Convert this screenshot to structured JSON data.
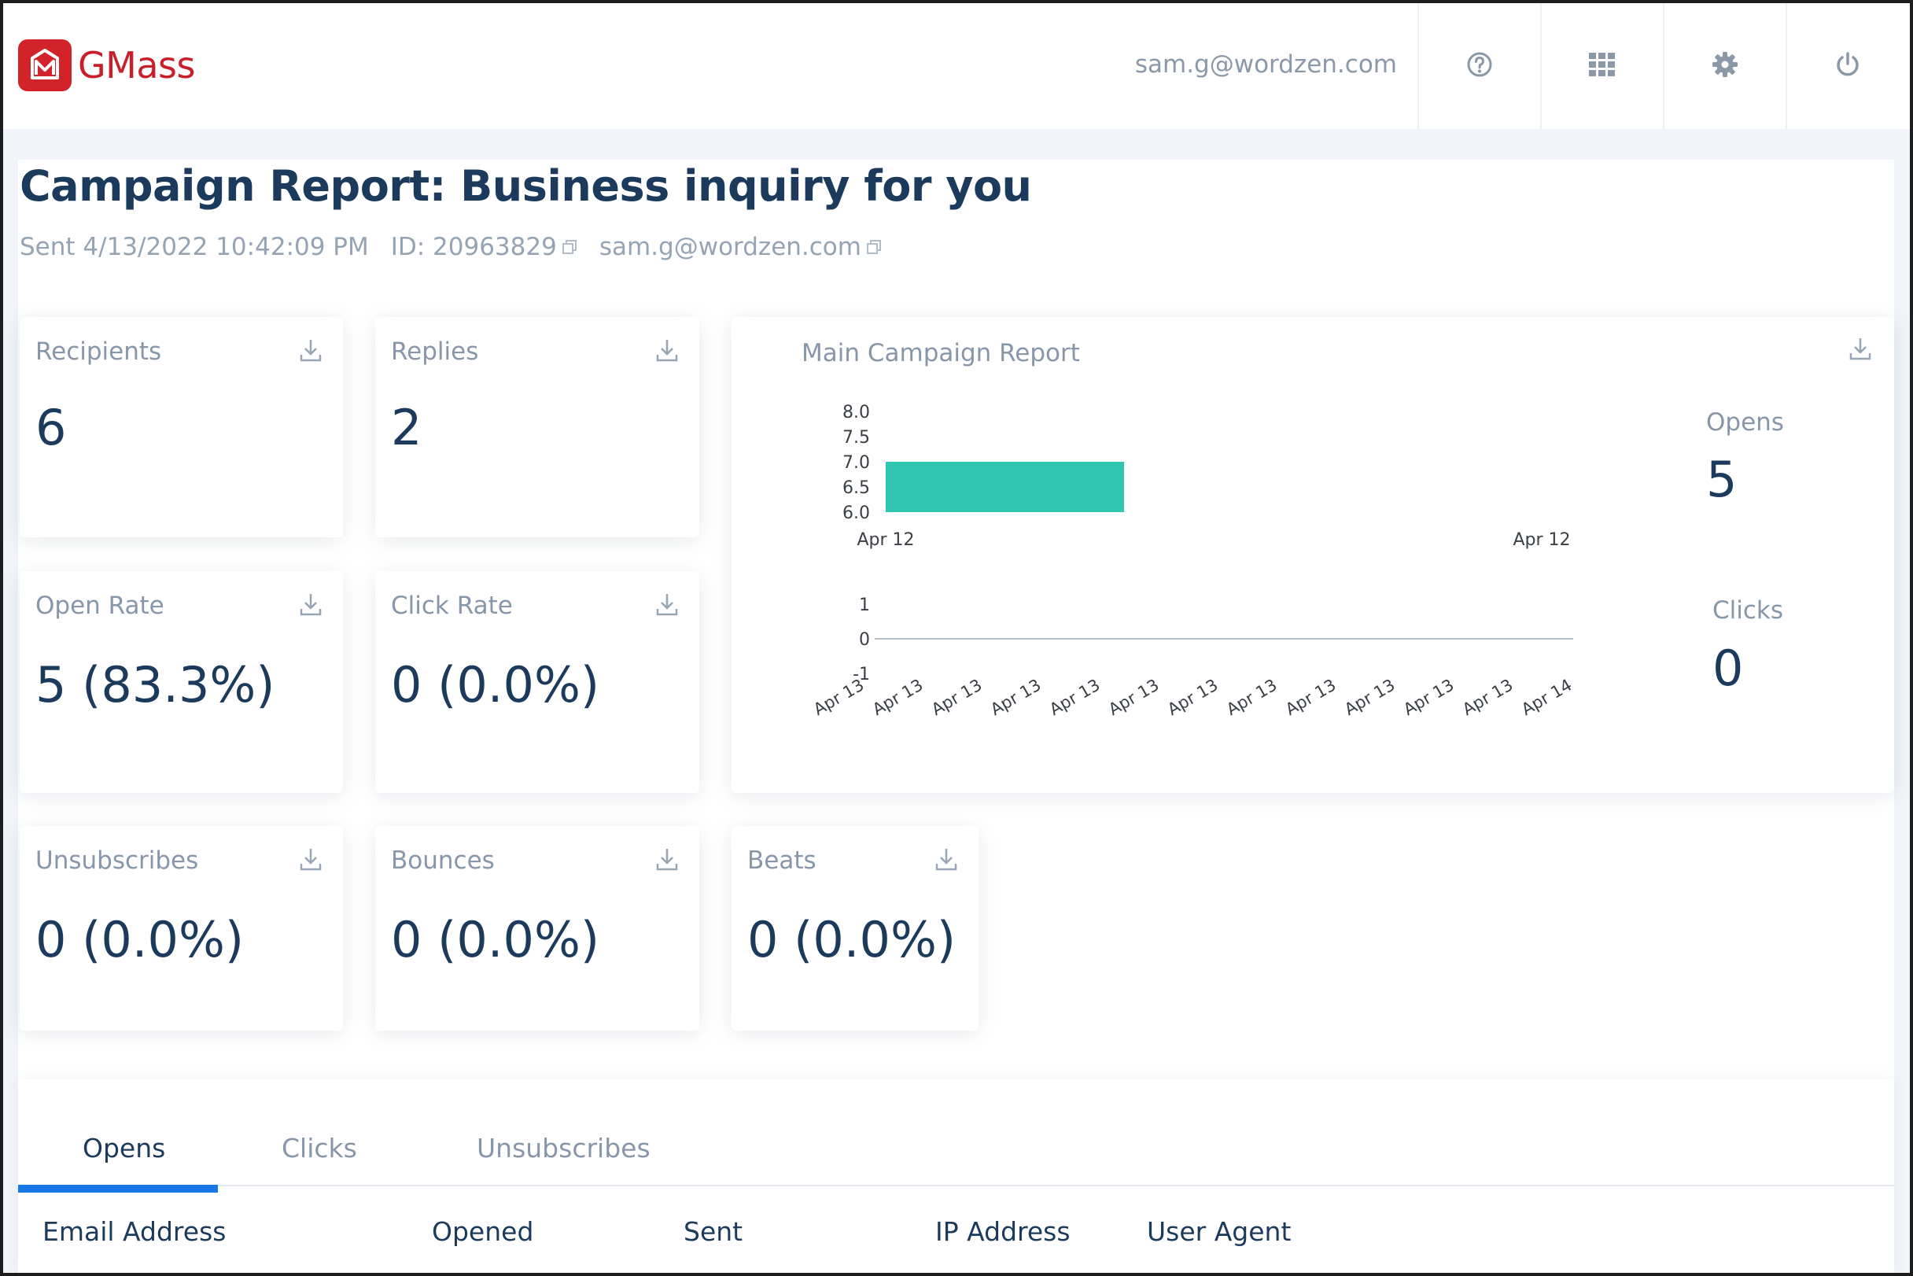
{
  "app": {
    "brand": "GMass",
    "user_email": "sam.g@wordzen.com",
    "toolbar_icons": [
      "help-icon",
      "apps-grid-icon",
      "gear-icon",
      "power-icon"
    ]
  },
  "report": {
    "title": "Campaign Report: Business inquiry for you",
    "sent": "Sent 4/13/2022 10:42:09 PM",
    "id": "ID: 20963829",
    "sender_email": "sam.g@wordzen.com"
  },
  "stats": {
    "recipients": {
      "label": "Recipients",
      "value": "6"
    },
    "replies": {
      "label": "Replies",
      "value": "2"
    },
    "open_rate": {
      "label": "Open Rate",
      "value": "5 (83.3%)"
    },
    "click_rate": {
      "label": "Click Rate",
      "value": "0 (0.0%)"
    },
    "unsubscribes": {
      "label": "Unsubscribes",
      "value": "0 (0.0%)"
    },
    "bounces": {
      "label": "Bounces",
      "value": "0 (0.0%)"
    },
    "beats": {
      "label": "Beats",
      "value": "0 (0.0%)"
    }
  },
  "main_report": {
    "title": "Main Campaign Report",
    "opens_label": "Opens",
    "opens_value": "5",
    "clicks_label": "Clicks",
    "clicks_value": "0"
  },
  "chart_data": [
    {
      "type": "bar",
      "title": "",
      "x_ticks": [
        "Apr 12",
        "Apr 12"
      ],
      "y_ticks": [
        "8.0",
        "7.5",
        "7.0",
        "6.5",
        "6.0"
      ],
      "ylim": [
        6.0,
        8.0
      ],
      "values": [
        7.0
      ],
      "color": "#2ec6b0"
    },
    {
      "type": "line",
      "title": "",
      "x_ticks": [
        "Apr 13",
        "Apr 13",
        "Apr 13",
        "Apr 13",
        "Apr 13",
        "Apr 13",
        "Apr 13",
        "Apr 13",
        "Apr 13",
        "Apr 13",
        "Apr 13",
        "Apr 13",
        "Apr 14"
      ],
      "y_ticks": [
        "1",
        "0",
        "-1"
      ],
      "ylim": [
        -1,
        1
      ],
      "values": [
        0,
        0
      ],
      "color": "#b9bfc7"
    }
  ],
  "tabs": [
    {
      "label": "Opens",
      "active": true
    },
    {
      "label": "Clicks",
      "active": false
    },
    {
      "label": "Unsubscribes",
      "active": false
    }
  ],
  "table": {
    "columns": [
      "Email Address",
      "Opened",
      "Sent",
      "IP Address",
      "User Agent"
    ]
  }
}
